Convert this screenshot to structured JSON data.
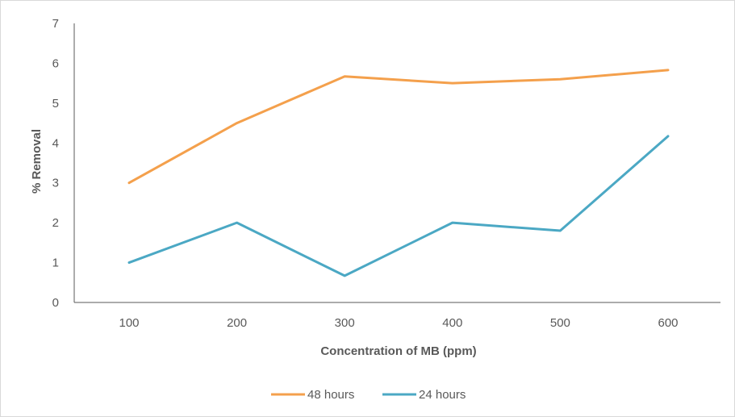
{
  "chart_data": {
    "type": "line",
    "title": "",
    "xlabel": "Concentration of MB  (ppm)",
    "ylabel": "% Removal",
    "categories": [
      "100",
      "200",
      "300",
      "400",
      "500",
      "600"
    ],
    "ylim": [
      0,
      7
    ],
    "yticks": [
      "0",
      "1",
      "2",
      "3",
      "4",
      "5",
      "6",
      "7"
    ],
    "grid": false,
    "legend_position": "bottom",
    "series": [
      {
        "name": "48 hours",
        "color": "#F4A04C",
        "values": [
          3.0,
          4.5,
          5.67,
          5.5,
          5.6,
          5.83
        ]
      },
      {
        "name": "24 hours",
        "color": "#4BA8C4",
        "values": [
          1.0,
          2.0,
          0.67,
          2.0,
          1.8,
          4.17
        ]
      }
    ],
    "axis_color": "#595959"
  }
}
